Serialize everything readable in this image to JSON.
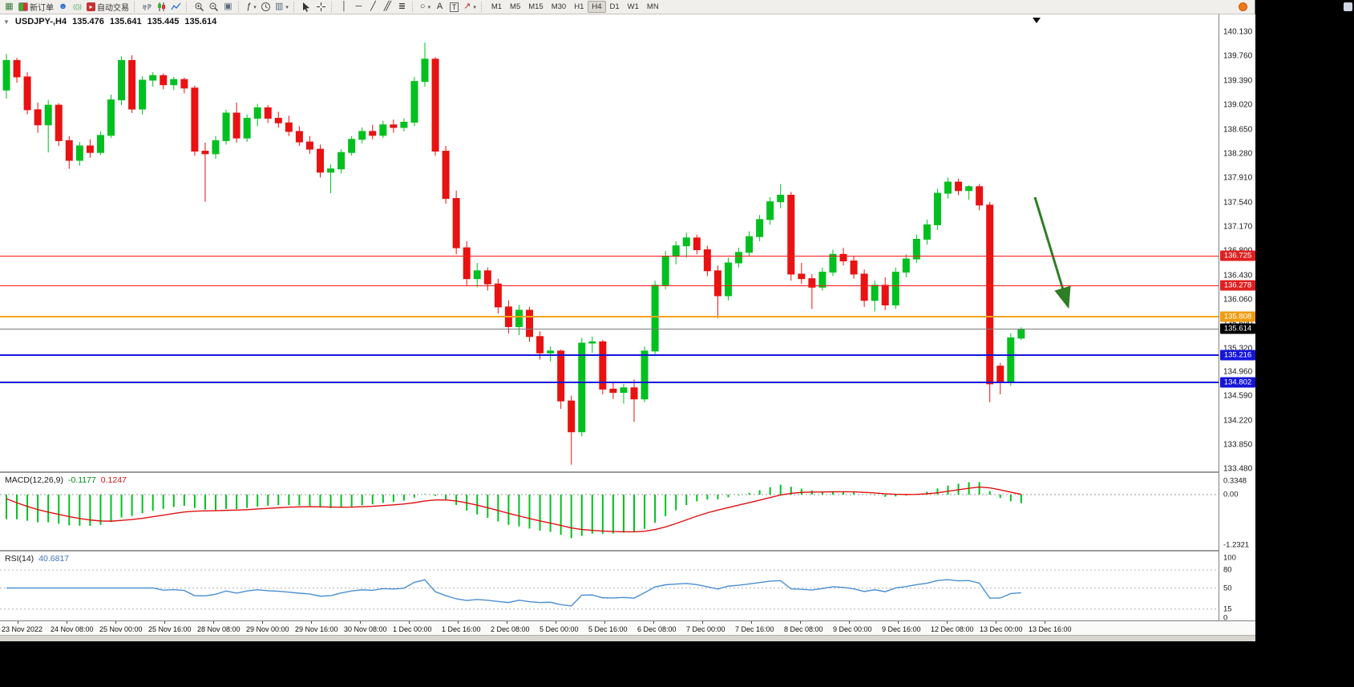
{
  "toolbar": {
    "new_order_label": "新订单",
    "autotrading_label": "自动交易",
    "text_tool_label": "A",
    "label_tool_label": "T",
    "indicators_glyph": "ƒ",
    "timeframes": [
      "M1",
      "M5",
      "M15",
      "M30",
      "H1",
      "H4",
      "D1",
      "W1",
      "MN"
    ],
    "active_timeframe": "H4"
  },
  "chart_header": {
    "symbol_period": "USDJPY-,H4",
    "open": "135.476",
    "high": "135.641",
    "low": "135.445",
    "close": "135.614"
  },
  "price_axis_ticks": [
    "140.130",
    "139.760",
    "139.390",
    "139.020",
    "138.650",
    "138.280",
    "137.910",
    "137.540",
    "137.170",
    "136.800",
    "136.430",
    "136.060",
    "135.690",
    "135.320",
    "134.960",
    "134.590",
    "134.220",
    "133.850",
    "133.480"
  ],
  "price_lines": [
    {
      "value": "136.725",
      "color": "#ff1616",
      "label_bg": "#e02020",
      "thickness": 1,
      "kind": "resistance"
    },
    {
      "value": "136.278",
      "color": "#ff1616",
      "label_bg": "#e02020",
      "thickness": 1,
      "kind": "resistance"
    },
    {
      "value": "135.808",
      "color": "#f5a31d",
      "label_bg": "#f09c12",
      "thickness": 2,
      "kind": "level"
    },
    {
      "value": "135.614",
      "color": "#7a7a7a",
      "label_bg": "#000000",
      "thickness": 1,
      "kind": "bid"
    },
    {
      "value": "135.216",
      "color": "#1515d8",
      "label_bg": "#1515d8",
      "thickness": 2,
      "kind": "support"
    },
    {
      "value": "134.802",
      "color": "#1515d8",
      "label_bg": "#1515d8",
      "thickness": 2,
      "kind": "support"
    }
  ],
  "macd_panel": {
    "name": "MACD(12,26,9)",
    "main_value": "-0.1177",
    "signal_value": "0.1247",
    "axis_ticks": [
      "0.3348",
      "0.00",
      "-1.2321"
    ],
    "histogram_color": "#00c020",
    "signal_color": "#e01010"
  },
  "rsi_panel": {
    "name": "RSI(14)",
    "value": "40.6817",
    "axis_ticks": [
      "100",
      "80",
      "50",
      "15",
      "0"
    ],
    "levels": [
      80,
      50,
      15
    ],
    "line_color": "#4a8fd4"
  },
  "time_axis_labels": [
    "23 Nov 2022",
    "24 Nov 08:00",
    "25 Nov 00:00",
    "25 Nov 16:00",
    "28 Nov 08:00",
    "29 Nov 00:00",
    "29 Nov 16:00",
    "30 Nov 08:00",
    "1 Dec 00:00",
    "1 Dec 16:00",
    "2 Dec 08:00",
    "5 Dec 00:00",
    "5 Dec 16:00",
    "6 Dec 08:00",
    "7 Dec 00:00",
    "7 Dec 16:00",
    "8 Dec 08:00",
    "9 Dec 00:00",
    "9 Dec 16:00",
    "12 Dec 08:00",
    "13 Dec 00:00",
    "13 Dec 16:00"
  ],
  "annotation": {
    "type": "arrow-down-right",
    "color": "#2f7d26"
  },
  "chart_data": {
    "type": "candlestick",
    "symbol": "USDJPY-",
    "timeframe": "H4",
    "up_color": "#00c020",
    "down_color": "#e81212",
    "price_range_visible": [
      133.48,
      140.13
    ],
    "candles_ohlc": [
      [
        139.25,
        139.8,
        139.12,
        139.7
      ],
      [
        139.7,
        139.74,
        139.36,
        139.45
      ],
      [
        139.45,
        139.52,
        138.88,
        138.95
      ],
      [
        138.95,
        139.06,
        138.6,
        138.72
      ],
      [
        138.72,
        139.1,
        138.3,
        139.02
      ],
      [
        139.02,
        139.05,
        138.4,
        138.48
      ],
      [
        138.48,
        138.55,
        138.05,
        138.18
      ],
      [
        138.18,
        138.46,
        138.1,
        138.4
      ],
      [
        138.4,
        138.5,
        138.22,
        138.3
      ],
      [
        138.3,
        138.62,
        138.26,
        138.56
      ],
      [
        138.56,
        139.18,
        138.52,
        139.1
      ],
      [
        139.1,
        139.76,
        139.02,
        139.7
      ],
      [
        139.7,
        139.78,
        138.9,
        138.96
      ],
      [
        138.96,
        139.46,
        138.88,
        139.4
      ],
      [
        139.4,
        139.52,
        139.3,
        139.47
      ],
      [
        139.47,
        139.5,
        139.26,
        139.33
      ],
      [
        139.33,
        139.45,
        139.25,
        139.41
      ],
      [
        139.41,
        139.44,
        139.2,
        139.28
      ],
      [
        139.28,
        139.32,
        138.25,
        138.32
      ],
      [
        138.32,
        138.45,
        137.55,
        138.28
      ],
      [
        138.28,
        138.55,
        138.2,
        138.48
      ],
      [
        138.48,
        138.95,
        138.42,
        138.9
      ],
      [
        138.9,
        139.06,
        138.45,
        138.52
      ],
      [
        138.52,
        138.88,
        138.46,
        138.82
      ],
      [
        138.82,
        139.04,
        138.7,
        138.98
      ],
      [
        138.98,
        139.02,
        138.75,
        138.82
      ],
      [
        138.82,
        138.92,
        138.68,
        138.75
      ],
      [
        138.75,
        138.86,
        138.55,
        138.62
      ],
      [
        138.62,
        138.7,
        138.4,
        138.46
      ],
      [
        138.46,
        138.55,
        138.28,
        138.35
      ],
      [
        138.35,
        138.42,
        137.92,
        138.0
      ],
      [
        138.0,
        138.12,
        137.68,
        138.05
      ],
      [
        138.05,
        138.35,
        137.98,
        138.3
      ],
      [
        138.3,
        138.55,
        138.25,
        138.5
      ],
      [
        138.5,
        138.68,
        138.44,
        138.62
      ],
      [
        138.62,
        138.72,
        138.5,
        138.56
      ],
      [
        138.56,
        138.78,
        138.52,
        138.72
      ],
      [
        138.72,
        138.8,
        138.6,
        138.68
      ],
      [
        138.68,
        138.82,
        138.62,
        138.76
      ],
      [
        138.76,
        139.45,
        138.7,
        139.38
      ],
      [
        139.38,
        139.97,
        139.3,
        139.72
      ],
      [
        139.72,
        139.75,
        138.25,
        138.32
      ],
      [
        138.32,
        138.4,
        137.52,
        137.6
      ],
      [
        137.6,
        137.72,
        136.75,
        136.85
      ],
      [
        136.85,
        136.95,
        136.28,
        136.38
      ],
      [
        136.38,
        136.62,
        136.25,
        136.5
      ],
      [
        136.5,
        136.55,
        136.2,
        136.3
      ],
      [
        136.3,
        136.38,
        135.85,
        135.95
      ],
      [
        135.95,
        136.05,
        135.55,
        135.65
      ],
      [
        135.65,
        135.98,
        135.52,
        135.9
      ],
      [
        135.9,
        135.95,
        135.42,
        135.5
      ],
      [
        135.5,
        135.58,
        135.15,
        135.25
      ],
      [
        135.25,
        135.35,
        135.12,
        135.28
      ],
      [
        135.28,
        135.3,
        134.4,
        134.52
      ],
      [
        134.52,
        134.6,
        133.55,
        134.05
      ],
      [
        134.05,
        135.48,
        133.98,
        135.4
      ],
      [
        135.4,
        135.5,
        135.25,
        135.42
      ],
      [
        135.42,
        135.45,
        134.62,
        134.7
      ],
      [
        134.7,
        134.82,
        134.55,
        134.65
      ],
      [
        134.65,
        134.78,
        134.48,
        134.72
      ],
      [
        134.72,
        134.85,
        134.2,
        134.55
      ],
      [
        134.55,
        135.35,
        134.5,
        135.28
      ],
      [
        135.28,
        136.35,
        135.22,
        136.28
      ],
      [
        136.28,
        136.8,
        136.22,
        136.72
      ],
      [
        136.72,
        136.95,
        136.6,
        136.88
      ],
      [
        136.88,
        137.08,
        136.7,
        137.0
      ],
      [
        137.0,
        137.05,
        136.75,
        136.82
      ],
      [
        136.82,
        136.88,
        136.42,
        136.5
      ],
      [
        136.5,
        136.58,
        135.78,
        136.12
      ],
      [
        136.12,
        136.7,
        136.05,
        136.62
      ],
      [
        136.62,
        136.85,
        136.55,
        136.78
      ],
      [
        136.78,
        137.1,
        136.72,
        137.02
      ],
      [
        137.02,
        137.35,
        136.95,
        137.28
      ],
      [
        137.28,
        137.62,
        137.2,
        137.55
      ],
      [
        137.55,
        137.82,
        137.45,
        137.65
      ],
      [
        137.65,
        137.7,
        136.35,
        136.45
      ],
      [
        136.45,
        136.62,
        136.3,
        136.38
      ],
      [
        136.38,
        136.45,
        135.92,
        136.25
      ],
      [
        136.25,
        136.55,
        136.2,
        136.48
      ],
      [
        136.48,
        136.82,
        136.42,
        136.75
      ],
      [
        136.75,
        136.85,
        136.58,
        136.65
      ],
      [
        136.65,
        136.72,
        136.38,
        136.45
      ],
      [
        136.45,
        136.52,
        135.95,
        136.05
      ],
      [
        136.05,
        136.35,
        135.88,
        136.28
      ],
      [
        136.28,
        136.4,
        135.9,
        135.98
      ],
      [
        135.98,
        136.55,
        135.92,
        136.48
      ],
      [
        136.48,
        136.75,
        136.4,
        136.68
      ],
      [
        136.68,
        137.05,
        136.62,
        136.98
      ],
      [
        136.98,
        137.28,
        136.9,
        137.2
      ],
      [
        137.2,
        137.75,
        137.12,
        137.68
      ],
      [
        137.68,
        137.92,
        137.6,
        137.85
      ],
      [
        137.85,
        137.9,
        137.65,
        137.72
      ],
      [
        137.72,
        137.8,
        137.58,
        137.78
      ],
      [
        137.78,
        137.82,
        137.42,
        137.5
      ],
      [
        137.5,
        137.55,
        134.5,
        134.78
      ],
      [
        135.05,
        135.1,
        134.62,
        134.8
      ],
      [
        134.8,
        135.55,
        134.75,
        135.48
      ],
      [
        135.476,
        135.641,
        135.445,
        135.614
      ]
    ]
  }
}
